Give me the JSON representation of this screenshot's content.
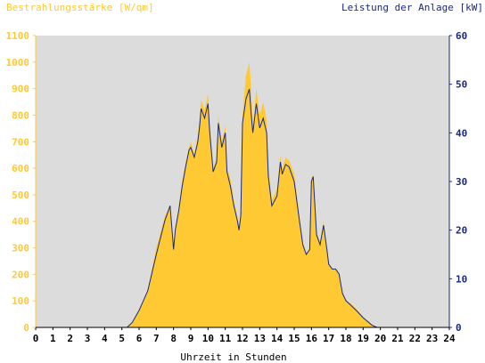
{
  "chart_data": {
    "type": "area",
    "left_label": "Bestrahlungsstärke [W/qm]",
    "right_label": "Leistung der Anlage [kW]",
    "xlabel": "Uhrzeit in Stunden",
    "xlim": [
      0,
      24
    ],
    "ylim_left": [
      0,
      1100
    ],
    "ylim_right": [
      0,
      60
    ],
    "x_ticks": [
      "0",
      "1",
      "2",
      "3",
      "4",
      "5",
      "6",
      "7",
      "8",
      "9",
      "10",
      "11",
      "12",
      "13",
      "14",
      "15",
      "16",
      "17",
      "18",
      "19",
      "20",
      "21",
      "22",
      "23",
      "24"
    ],
    "y_left_ticks": [
      "0",
      "100",
      "200",
      "300",
      "400",
      "500",
      "600",
      "700",
      "800",
      "900",
      "1000",
      "1100"
    ],
    "y_right_ticks": [
      "0",
      "10",
      "20",
      "30",
      "40",
      "50",
      "60"
    ],
    "colors": {
      "irradiance": "#ffc933",
      "power": "#1a2a7a",
      "plot_bg": "#dcdcdc",
      "left_axis_text": "#ffc933",
      "right_axis_text": "#1a2a7a",
      "tick_text": "#000000"
    },
    "series": [
      {
        "name": "Bestrahlungsstärke",
        "axis": "left",
        "x": [
          0,
          5.3,
          5.6,
          6.0,
          6.5,
          7.0,
          7.5,
          7.8,
          8.0,
          8.1,
          8.3,
          8.5,
          8.7,
          8.9,
          9.0,
          9.2,
          9.4,
          9.5,
          9.6,
          9.8,
          10.0,
          10.1,
          10.3,
          10.5,
          10.6,
          10.8,
          11.0,
          11.1,
          11.3,
          11.5,
          11.7,
          11.8,
          11.9,
          12.0,
          12.2,
          12.4,
          12.5,
          12.6,
          12.8,
          13.0,
          13.2,
          13.4,
          13.5,
          13.7,
          14.0,
          14.2,
          14.3,
          14.5,
          14.7,
          15.0,
          15.3,
          15.5,
          15.7,
          15.9,
          16.0,
          16.1,
          16.3,
          16.5,
          16.7,
          16.9,
          17.0,
          17.2,
          17.4,
          17.6,
          17.8,
          18.0,
          18.3,
          18.6,
          19.0,
          19.5,
          19.8,
          20.0,
          24
        ],
        "y": [
          0,
          0,
          20,
          60,
          140,
          300,
          420,
          460,
          300,
          380,
          450,
          550,
          620,
          680,
          700,
          650,
          720,
          780,
          860,
          820,
          880,
          760,
          600,
          640,
          800,
          700,
          760,
          600,
          560,
          480,
          420,
          380,
          440,
          800,
          950,
          1000,
          900,
          760,
          900,
          800,
          850,
          780,
          600,
          480,
          520,
          650,
          600,
          640,
          630,
          580,
          420,
          320,
          280,
          300,
          560,
          580,
          360,
          320,
          400,
          300,
          240,
          220,
          220,
          200,
          130,
          100,
          90,
          70,
          40,
          10,
          0,
          0,
          0
        ]
      },
      {
        "name": "Leistung",
        "axis": "right",
        "x": [
          0,
          5.3,
          5.6,
          6.0,
          6.5,
          7.0,
          7.5,
          7.8,
          8.0,
          8.1,
          8.3,
          8.5,
          8.7,
          8.9,
          9.0,
          9.2,
          9.4,
          9.5,
          9.6,
          9.8,
          10.0,
          10.1,
          10.3,
          10.5,
          10.6,
          10.8,
          11.0,
          11.1,
          11.3,
          11.5,
          11.7,
          11.8,
          11.9,
          12.0,
          12.2,
          12.4,
          12.5,
          12.6,
          12.8,
          13.0,
          13.2,
          13.4,
          13.5,
          13.7,
          14.0,
          14.2,
          14.3,
          14.5,
          14.7,
          15.0,
          15.3,
          15.5,
          15.7,
          15.9,
          16.0,
          16.1,
          16.3,
          16.5,
          16.7,
          16.9,
          17.0,
          17.2,
          17.4,
          17.6,
          17.8,
          18.0,
          18.3,
          18.6,
          19.0,
          19.5,
          19.8,
          20.0,
          24
        ],
        "y": [
          0,
          0,
          1,
          3.5,
          7.5,
          15,
          22,
          25,
          16,
          20,
          24,
          29,
          33,
          36.5,
          37,
          35,
          38,
          41,
          45,
          43,
          46,
          40,
          32,
          34,
          42,
          37,
          40,
          32,
          29,
          25,
          22,
          20,
          23,
          42,
          47,
          49,
          44,
          40,
          46,
          41,
          43,
          40,
          31,
          25,
          27,
          34,
          31.5,
          33.5,
          33,
          30,
          22,
          17,
          15,
          16,
          30,
          31,
          19,
          17,
          21,
          16,
          13,
          12,
          12,
          11,
          7,
          5.5,
          4.5,
          3.5,
          2,
          0.5,
          0,
          0,
          0
        ]
      }
    ]
  }
}
